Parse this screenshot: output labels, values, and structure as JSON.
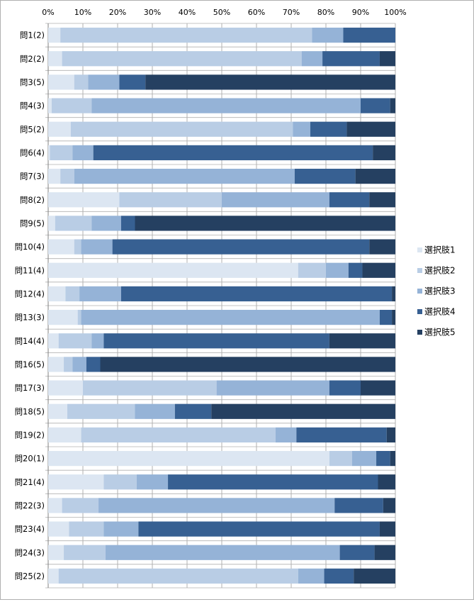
{
  "chart_data": {
    "type": "bar",
    "orientation": "horizontal",
    "stacked": "percent",
    "xlim": [
      0,
      100
    ],
    "x_ticks": [
      "0%",
      "10%",
      "20%",
      "30%",
      "40%",
      "50%",
      "60%",
      "70%",
      "80%",
      "90%",
      "100%"
    ],
    "grid": true,
    "legend_position": "right",
    "categories": [
      "問1(2)",
      "問2(2)",
      "問3(5)",
      "問4(3)",
      "問5(2)",
      "問6(4)",
      "問7(3)",
      "問8(2)",
      "問9(5)",
      "問10(4)",
      "問11(4)",
      "問12(4)",
      "問13(3)",
      "問14(4)",
      "問16(5)",
      "問17(3)",
      "問18(5)",
      "問19(2)",
      "問20(1)",
      "問21(4)",
      "問22(3)",
      "問23(4)",
      "問24(3)",
      "問25(2)"
    ],
    "series": [
      {
        "name": "選択肢1",
        "color": "#dce6f2",
        "values": [
          3.5,
          4,
          7.5,
          1,
          6.5,
          0.5,
          3.5,
          20.5,
          2,
          7.5,
          72,
          5,
          8.5,
          3,
          4.5,
          10,
          5.5,
          9.5,
          81,
          16,
          4,
          6,
          4.5,
          3
        ]
      },
      {
        "name": "選択肢2",
        "color": "#b9cde5",
        "values": [
          72.5,
          69,
          4,
          11.5,
          64,
          6.5,
          4,
          29.5,
          10.5,
          2,
          8,
          4,
          1,
          9.5,
          2.5,
          38.5,
          19.5,
          56,
          6.5,
          9.5,
          10.5,
          10,
          12,
          69
        ]
      },
      {
        "name": "選択肢3",
        "color": "#95b3d7",
        "values": [
          9,
          6,
          9,
          77.5,
          5,
          6,
          63.5,
          31,
          8.5,
          9,
          6.5,
          12,
          86,
          3.5,
          4,
          32.5,
          11.5,
          6,
          7,
          9,
          68,
          10,
          67.5,
          7.5
        ]
      },
      {
        "name": "選択肢4",
        "color": "#376092",
        "values": [
          15,
          16.5,
          7.5,
          8.5,
          10.5,
          80.5,
          17.5,
          11.5,
          4,
          74,
          4,
          78,
          3.5,
          65,
          4,
          9,
          10.5,
          26,
          4,
          60.5,
          14,
          69.5,
          10,
          8.5
        ]
      },
      {
        "name": "選択肢5",
        "color": "#254061",
        "values": [
          0,
          4.5,
          72,
          1.5,
          14,
          6.5,
          11.5,
          7.5,
          75,
          7.5,
          9.5,
          1,
          1,
          19,
          85,
          10,
          53,
          2.5,
          1.5,
          5,
          3.5,
          4.5,
          6,
          12
        ]
      }
    ]
  }
}
